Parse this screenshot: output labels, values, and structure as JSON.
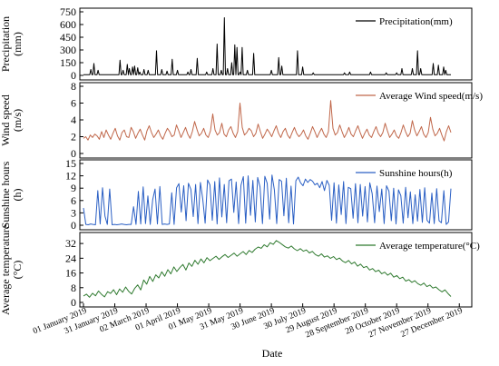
{
  "chart_data": {
    "type": "line",
    "xlabel": "Date",
    "x_ticks": [
      "01 January 2019",
      "31 January 2019",
      "02 March 2019",
      "01 April 2019",
      "01 May 2019",
      "31 May 2019",
      "30 June 2019",
      "30 July 2019",
      "29 August 2019",
      "28 September 2019",
      "28 October 2019",
      "27 November 2019",
      "27 December 2019"
    ],
    "x_range": [
      "2019-01-01",
      "2019-12-31"
    ],
    "panels": [
      {
        "series_name": "Precipitation(mm)",
        "ylabel": "Precipitation\n(mm)",
        "ylim": [
          0,
          750
        ],
        "yticks": [
          0,
          150,
          300,
          450,
          600,
          750
        ],
        "color": "#000000",
        "spikes": [
          [
            7,
            70
          ],
          [
            10,
            140
          ],
          [
            14,
            60
          ],
          [
            35,
            180
          ],
          [
            38,
            60
          ],
          [
            42,
            130
          ],
          [
            44,
            80
          ],
          [
            47,
            100
          ],
          [
            49,
            110
          ],
          [
            52,
            90
          ],
          [
            54,
            40
          ],
          [
            58,
            70
          ],
          [
            62,
            60
          ],
          [
            70,
            290
          ],
          [
            75,
            70
          ],
          [
            80,
            50
          ],
          [
            85,
            190
          ],
          [
            90,
            60
          ],
          [
            100,
            40
          ],
          [
            103,
            70
          ],
          [
            109,
            200
          ],
          [
            118,
            40
          ],
          [
            124,
            80
          ],
          [
            128,
            370
          ],
          [
            132,
            60
          ],
          [
            135,
            680
          ],
          [
            138,
            80
          ],
          [
            142,
            150
          ],
          [
            145,
            360
          ],
          [
            147,
            330
          ],
          [
            150,
            40
          ],
          [
            152,
            330
          ],
          [
            157,
            60
          ],
          [
            163,
            260
          ],
          [
            180,
            60
          ],
          [
            187,
            210
          ],
          [
            190,
            110
          ],
          [
            205,
            290
          ],
          [
            210,
            100
          ],
          [
            220,
            30
          ],
          [
            250,
            30
          ],
          [
            255,
            40
          ],
          [
            275,
            40
          ],
          [
            290,
            30
          ],
          [
            300,
            30
          ],
          [
            305,
            80
          ],
          [
            315,
            80
          ],
          [
            320,
            290
          ],
          [
            323,
            80
          ],
          [
            335,
            140
          ],
          [
            340,
            120
          ],
          [
            345,
            100
          ],
          [
            347,
            60
          ]
        ],
        "baseline": 8
      },
      {
        "series_name": "Average Wind speed(m/s)",
        "ylabel": "Wind speed\n(m/s)",
        "ylim": [
          0,
          8
        ],
        "yticks": [
          0,
          2,
          4,
          6,
          8
        ],
        "color": "#c0674a",
        "values": [
          1.8,
          2.0,
          1.6,
          2.2,
          1.9,
          2.3,
          2.1,
          1.7,
          2.6,
          1.9,
          2.8,
          2.2,
          1.7,
          2.4,
          3.0,
          2.1,
          1.6,
          2.5,
          2.8,
          2.0,
          1.9,
          3.1,
          2.6,
          1.8,
          2.4,
          2.9,
          2.2,
          1.6,
          2.7,
          3.3,
          2.5,
          1.9,
          2.3,
          2.8,
          2.1,
          1.7,
          2.4,
          3.0,
          2.6,
          2.0,
          2.2,
          3.4,
          2.7,
          1.9,
          2.5,
          3.1,
          2.3,
          1.8,
          2.6,
          3.8,
          2.9,
          2.1,
          2.4,
          3.0,
          2.2,
          1.9,
          2.7,
          4.7,
          2.8,
          2.2,
          2.5,
          3.6,
          2.3,
          2.0,
          2.8,
          3.2,
          2.4,
          1.9,
          2.6,
          6.0,
          3.1,
          2.2,
          2.5,
          3.0,
          2.7,
          2.0,
          2.4,
          3.5,
          2.6,
          1.8,
          2.3,
          2.9,
          2.5,
          2.0,
          2.7,
          3.3,
          2.4,
          1.9,
          2.6,
          3.0,
          2.2,
          1.8,
          2.5,
          3.1,
          2.4,
          2.0,
          2.3,
          2.8,
          2.1,
          1.7,
          2.4,
          3.2,
          2.6,
          1.9,
          2.5,
          3.0,
          2.3,
          1.9,
          2.6,
          6.3,
          3.0,
          2.2,
          2.5,
          3.4,
          2.6,
          1.9,
          2.4,
          3.1,
          2.3,
          2.0,
          2.7,
          3.3,
          2.5,
          1.8,
          2.4,
          2.9,
          2.2,
          1.9,
          2.6,
          3.2,
          2.4,
          2.0,
          2.5,
          3.6,
          2.7,
          1.9,
          2.3,
          2.8,
          2.1,
          1.8,
          2.5,
          3.4,
          2.6,
          2.0,
          2.4,
          3.9,
          2.8,
          2.1,
          2.6,
          3.2,
          2.3,
          1.9,
          2.5,
          4.3,
          2.9,
          2.1,
          2.4,
          3.0,
          2.2,
          1.5,
          2.6,
          3.3,
          2.5
        ],
        "baseline": 0
      },
      {
        "series_name": "Sunshine hours(h)",
        "ylabel": "Sunshine hours\n(h)",
        "ylim": [
          0,
          15
        ],
        "yticks": [
          0,
          3,
          6,
          9,
          12,
          15
        ],
        "color": "#2a5fc4",
        "values": [
          4.2,
          0.2,
          0.1,
          0.3,
          0.2,
          0.1,
          8.4,
          0.3,
          9.1,
          2.2,
          0.2,
          8.8,
          0.1,
          0.2,
          0.1,
          0.2,
          0.3,
          0.2,
          0.1,
          0.2,
          0.2,
          4.5,
          0.2,
          8.2,
          0.3,
          9.3,
          0.4,
          7.1,
          0.2,
          6.2,
          8.8,
          0.3,
          9.4,
          0.2,
          0.3,
          0.2,
          0.3,
          7.9,
          0.2,
          9.1,
          10.1,
          3.2,
          9.6,
          1.1,
          10.2,
          8.7,
          2.1,
          9.9,
          0.4,
          10.4,
          6.3,
          0.5,
          11.0,
          9.8,
          1.2,
          10.6,
          0.3,
          11.5,
          2.0,
          9.9,
          0.6,
          10.8,
          11.2,
          3.1,
          10.5,
          0.4,
          9.7,
          11.8,
          0.5,
          12.0,
          2.4,
          10.9,
          0.8,
          11.6,
          9.3,
          0.4,
          11.9,
          10.2,
          1.5,
          12.2,
          8.6,
          0.4,
          11.1,
          10.7,
          2.3,
          11.4,
          0.6,
          9.5,
          0.3,
          10.8,
          11.7,
          10.3,
          9.6,
          11.2,
          10.4,
          11.1,
          10.7,
          9.8,
          10.2,
          9.1,
          10.6,
          8.4,
          10.9,
          9.7,
          1.2,
          10.3,
          0.5,
          9.8,
          2.6,
          10.6,
          0.4,
          9.2,
          8.9,
          1.7,
          10.1,
          0.6,
          9.9,
          2.2,
          9.4,
          0.8,
          10.3,
          7.7,
          0.6,
          9.5,
          3.3,
          8.8,
          0.4,
          9.6,
          8.3,
          1.1,
          9.0,
          0.3,
          8.6,
          7.2,
          0.5,
          9.2,
          1.8,
          8.1,
          0.4,
          7.4,
          1.0,
          8.7,
          0.7,
          9.1,
          1.2,
          0.5,
          7.8,
          0.4,
          8.9,
          1.1,
          0.6,
          8.4,
          0.2,
          0.8,
          8.9
        ],
        "baseline": 0
      },
      {
        "series_name": "Average temperature(°C)",
        "ylabel": "Average temperature\n(°C)",
        "ylim": [
          0,
          36
        ],
        "yticks": [
          0,
          8,
          16,
          24,
          32
        ],
        "color": "#2f7a2f",
        "values": [
          3.5,
          4.5,
          2.8,
          5.0,
          3.6,
          6.2,
          4.4,
          3.0,
          5.8,
          4.9,
          6.9,
          4.2,
          7.3,
          5.5,
          8.4,
          6.0,
          4.6,
          7.6,
          9.5,
          6.8,
          12.2,
          9.9,
          14.1,
          11.4,
          15.0,
          13.3,
          16.6,
          14.2,
          17.8,
          15.5,
          19.3,
          16.8,
          18.9,
          20.6,
          17.6,
          21.4,
          19.6,
          22.9,
          20.7,
          23.6,
          21.5,
          24.3,
          22.7,
          23.9,
          25.1,
          23.4,
          24.8,
          26.0,
          24.4,
          25.6,
          26.8,
          25.1,
          26.4,
          27.6,
          26.0,
          28.2,
          27.1,
          28.9,
          30.1,
          29.4,
          31.3,
          30.2,
          32.4,
          31.5,
          33.6,
          32.6,
          31.4,
          30.2,
          29.5,
          30.6,
          29.1,
          28.1,
          29.2,
          27.8,
          28.5,
          26.9,
          27.7,
          26.0,
          25.1,
          26.4,
          24.6,
          25.3,
          23.9,
          24.9,
          23.3,
          24.1,
          22.5,
          21.6,
          22.8,
          20.9,
          21.9,
          19.7,
          20.8,
          18.9,
          19.6,
          17.6,
          18.4,
          16.7,
          17.5,
          15.6,
          16.4,
          14.8,
          15.9,
          13.7,
          14.6,
          12.9,
          13.7,
          11.6,
          12.4,
          10.9,
          11.8,
          10.2,
          9.3,
          10.5,
          8.6,
          9.4,
          7.8,
          8.4,
          6.9,
          5.7,
          6.8,
          4.9,
          3.2
        ],
        "baseline": 0
      }
    ]
  }
}
